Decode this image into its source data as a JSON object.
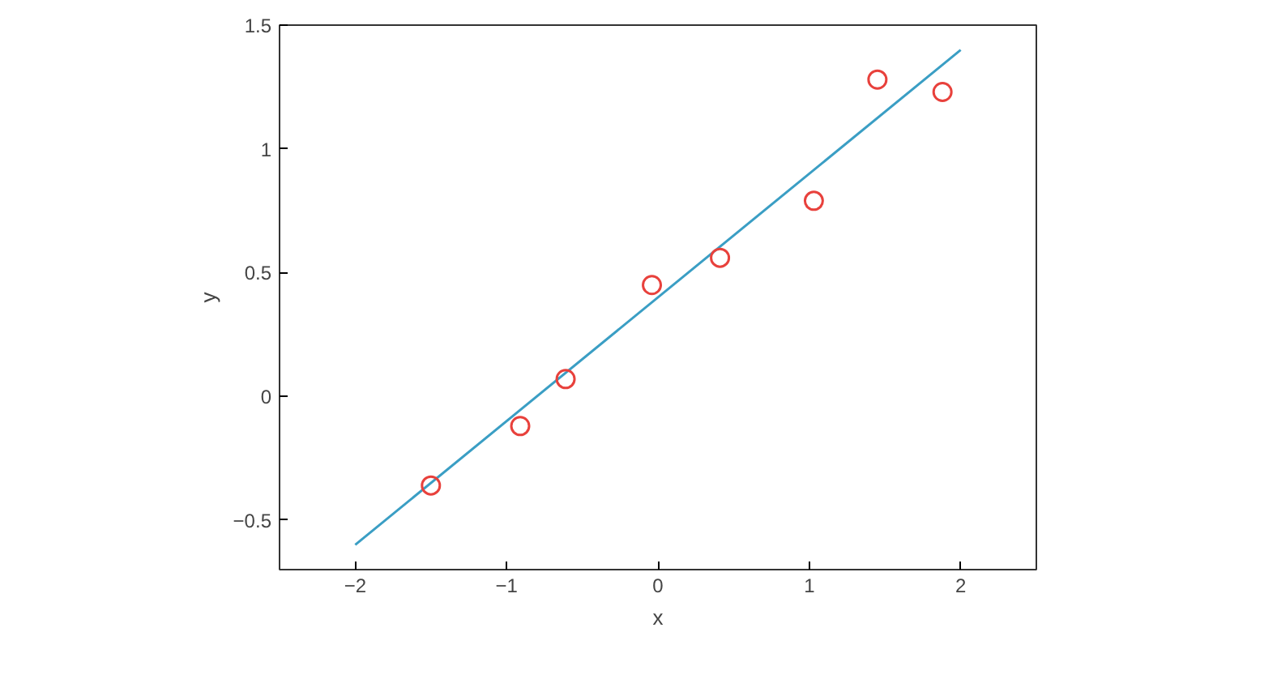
{
  "chart_data": {
    "type": "scatter",
    "xlabel": "x",
    "ylabel": "y",
    "xlim": [
      -2.5,
      2.5
    ],
    "ylim": [
      -0.7,
      1.5
    ],
    "xticks": [
      -2,
      -1,
      0,
      1,
      2
    ],
    "yticks": [
      -0.5,
      0,
      0.5,
      1,
      1.5
    ],
    "grid": false,
    "series": [
      {
        "marker": "circle",
        "color": "#e8413c",
        "x": [
          -1.5,
          -0.91,
          -0.61,
          -0.04,
          0.41,
          1.03,
          1.45,
          1.88
        ],
        "values": [
          -0.36,
          -0.12,
          0.07,
          0.45,
          0.56,
          0.79,
          1.28,
          1.23
        ]
      },
      {
        "type": "line",
        "color": "#3a9ec4",
        "line_style": "solid",
        "x": [
          -2,
          2
        ],
        "values": [
          -0.6,
          1.4
        ]
      }
    ]
  }
}
